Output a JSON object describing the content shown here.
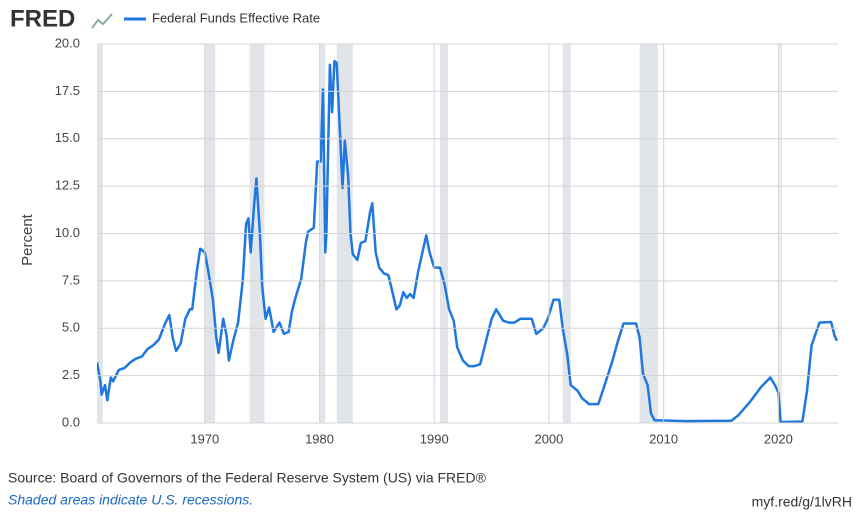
{
  "brand": "FRED",
  "chart_data": {
    "type": "line",
    "series": [
      {
        "name": "Federal Funds Effective Rate",
        "color": "#1f77e0",
        "x": [
          1960.6,
          1960.9,
          1961.0,
          1961.3,
          1961.5,
          1961.8,
          1962.0,
          1962.5,
          1963.0,
          1963.5,
          1964.0,
          1964.5,
          1965.0,
          1965.5,
          1966.0,
          1966.5,
          1966.9,
          1967.2,
          1967.5,
          1967.9,
          1968.3,
          1968.7,
          1968.9,
          1969.3,
          1969.6,
          1970.0,
          1970.3,
          1970.7,
          1971.0,
          1971.2,
          1971.6,
          1971.9,
          1972.1,
          1972.5,
          1972.9,
          1973.3,
          1973.6,
          1973.8,
          1974.0,
          1974.3,
          1974.5,
          1974.8,
          1975.0,
          1975.3,
          1975.6,
          1976.0,
          1976.5,
          1976.9,
          1977.3,
          1977.6,
          1977.9,
          1978.4,
          1978.8,
          1979.0,
          1979.5,
          1979.8,
          1980.1,
          1980.3,
          1980.5,
          1980.6,
          1980.9,
          1981.1,
          1981.3,
          1981.5,
          1981.8,
          1982.0,
          1982.2,
          1982.5,
          1982.7,
          1982.9,
          1983.3,
          1983.6,
          1984.0,
          1984.4,
          1984.6,
          1984.9,
          1985.2,
          1985.6,
          1986.0,
          1986.4,
          1986.7,
          1987.0,
          1987.3,
          1987.6,
          1987.9,
          1988.2,
          1988.6,
          1989.0,
          1989.3,
          1989.6,
          1990.0,
          1990.5,
          1990.9,
          1991.3,
          1991.7,
          1992.0,
          1992.5,
          1993.0,
          1993.5,
          1994.0,
          1994.5,
          1995.0,
          1995.4,
          1996.0,
          1996.5,
          1997.0,
          1997.5,
          1998.0,
          1998.5,
          1998.9,
          1999.5,
          1999.9,
          2000.4,
          2000.9,
          2001.2,
          2001.6,
          2001.9,
          2002.5,
          2002.9,
          2003.5,
          2004.3,
          2004.8,
          2005.5,
          2006.0,
          2006.5,
          2007.6,
          2007.9,
          2008.2,
          2008.6,
          2008.9,
          2009.2,
          2012.0,
          2015.9,
          2016.5,
          2017.5,
          2018.5,
          2019.3,
          2019.7,
          2020.0,
          2020.2,
          2022.1,
          2022.5,
          2022.9,
          2023.3,
          2023.6,
          2024.6,
          2024.9,
          2025.1
        ],
        "values": [
          3.2,
          2.2,
          1.5,
          2.0,
          1.2,
          2.4,
          2.2,
          2.8,
          2.9,
          3.2,
          3.4,
          3.5,
          3.9,
          4.1,
          4.4,
          5.2,
          5.7,
          4.5,
          3.8,
          4.2,
          5.5,
          6.0,
          6.0,
          8.0,
          9.2,
          9.0,
          8.0,
          6.5,
          4.5,
          3.7,
          5.5,
          4.6,
          3.3,
          4.4,
          5.3,
          7.5,
          10.5,
          10.8,
          9.0,
          11.5,
          12.9,
          10.0,
          7.2,
          5.5,
          6.1,
          4.8,
          5.3,
          4.7,
          4.8,
          5.9,
          6.6,
          7.6,
          9.5,
          10.1,
          10.3,
          13.8,
          13.8,
          17.6,
          9.0,
          10.0,
          18.9,
          16.4,
          19.1,
          19.0,
          15.1,
          12.4,
          14.9,
          13.0,
          10.0,
          8.9,
          8.6,
          9.5,
          9.6,
          11.1,
          11.6,
          9.0,
          8.2,
          7.9,
          7.8,
          6.8,
          6.0,
          6.2,
          6.9,
          6.6,
          6.8,
          6.6,
          8.0,
          9.1,
          9.9,
          9.0,
          8.2,
          8.2,
          7.3,
          6.0,
          5.4,
          4.0,
          3.3,
          3.0,
          3.0,
          3.1,
          4.3,
          5.5,
          6.0,
          5.4,
          5.3,
          5.3,
          5.5,
          5.5,
          5.5,
          4.7,
          5.0,
          5.5,
          6.5,
          6.5,
          5.0,
          3.6,
          2.0,
          1.7,
          1.3,
          1.0,
          1.0,
          1.9,
          3.2,
          4.3,
          5.25,
          5.25,
          4.5,
          2.6,
          2.0,
          0.5,
          0.15,
          0.1,
          0.12,
          0.4,
          1.1,
          1.9,
          2.4,
          2.0,
          1.6,
          0.05,
          0.08,
          1.7,
          4.1,
          4.8,
          5.3,
          5.33,
          4.6,
          4.33
        ]
      }
    ],
    "recessions": [
      [
        1960.3,
        1961.1
      ],
      [
        1969.95,
        1970.9
      ],
      [
        1973.9,
        1975.2
      ],
      [
        1980.0,
        1980.5
      ],
      [
        1981.5,
        1982.9
      ],
      [
        1990.5,
        1991.2
      ],
      [
        2001.2,
        2001.9
      ],
      [
        2007.9,
        2009.5
      ],
      [
        2020.1,
        2020.3
      ]
    ],
    "ylabel": "Percent",
    "xlim": [
      1960.6,
      2025.2
    ],
    "xticks": [
      1970,
      1980,
      1990,
      2000,
      2010,
      2020
    ],
    "ylim": [
      0,
      20
    ],
    "yticks": [
      {
        "value": 0,
        "label": "0.0"
      },
      2.5,
      {
        "value": 5,
        "label": "5.0"
      },
      7.5,
      {
        "value": 10,
        "label": "10.0"
      },
      12.5,
      {
        "value": 15,
        "label": "15.0"
      },
      17.5,
      {
        "value": 20,
        "label": "20.0"
      }
    ],
    "grid": true
  },
  "footer": {
    "source": "Source: Board of Governors of the Federal Reserve System (US) via FRED®",
    "note": "Shaded areas indicate U.S. recessions.",
    "link": "myf.red/g/1lvRH"
  }
}
